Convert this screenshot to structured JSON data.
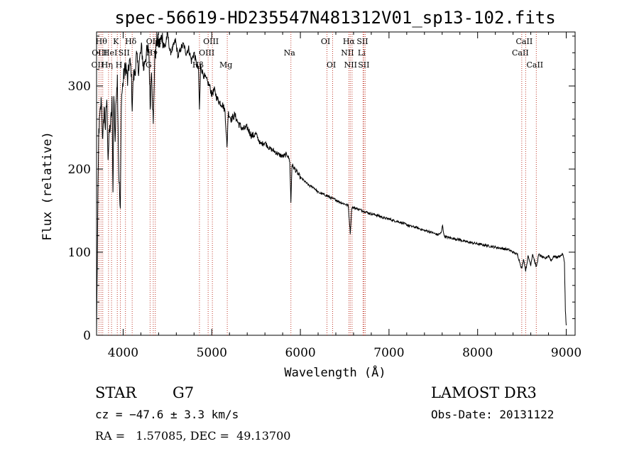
{
  "chart_data": {
    "type": "line",
    "title": "spec-56619-HD235547N481312V01_sp13-102.fits",
    "xlabel": "Wavelength (Å)",
    "ylabel": "Flux (relative)",
    "xlim": [
      3700,
      9100
    ],
    "ylim": [
      0,
      365
    ],
    "xticks": [
      4000,
      5000,
      6000,
      7000,
      8000,
      9000
    ],
    "yticks": [
      0,
      100,
      200,
      300
    ],
    "series": [
      {
        "name": "spectrum",
        "points": [
          [
            3700,
            3
          ],
          [
            3712,
            130
          ],
          [
            3725,
            245
          ],
          [
            3740,
            265
          ],
          [
            3755,
            285
          ],
          [
            3770,
            230
          ],
          [
            3785,
            275
          ],
          [
            3800,
            250
          ],
          [
            3815,
            285
          ],
          [
            3830,
            215
          ],
          [
            3845,
            245
          ],
          [
            3860,
            255
          ],
          [
            3875,
            280
          ],
          [
            3885,
            170
          ],
          [
            3895,
            290
          ],
          [
            3910,
            235
          ],
          [
            3925,
            300
          ],
          [
            3935,
            310
          ],
          [
            3950,
            200
          ],
          [
            3968,
            145
          ],
          [
            3980,
            285
          ],
          [
            3995,
            300
          ],
          [
            4010,
            315
          ],
          [
            4030,
            325
          ],
          [
            4050,
            305
          ],
          [
            4070,
            330
          ],
          [
            4090,
            320
          ],
          [
            4102,
            275
          ],
          [
            4115,
            310
          ],
          [
            4130,
            315
          ],
          [
            4150,
            335
          ],
          [
            4170,
            320
          ],
          [
            4190,
            335
          ],
          [
            4210,
            345
          ],
          [
            4230,
            320
          ],
          [
            4250,
            335
          ],
          [
            4270,
            340
          ],
          [
            4290,
            345
          ],
          [
            4305,
            275
          ],
          [
            4320,
            325
          ],
          [
            4340,
            250
          ],
          [
            4355,
            330
          ],
          [
            4380,
            355
          ],
          [
            4410,
            350
          ],
          [
            4440,
            360
          ],
          [
            4470,
            345
          ],
          [
            4500,
            365
          ],
          [
            4530,
            340
          ],
          [
            4560,
            345
          ],
          [
            4590,
            355
          ],
          [
            4620,
            335
          ],
          [
            4650,
            345
          ],
          [
            4680,
            350
          ],
          [
            4710,
            340
          ],
          [
            4740,
            345
          ],
          [
            4770,
            330
          ],
          [
            4800,
            340
          ],
          [
            4830,
            325
          ],
          [
            4850,
            320
          ],
          [
            4861,
            270
          ],
          [
            4875,
            325
          ],
          [
            4900,
            315
          ],
          [
            4925,
            310
          ],
          [
            4950,
            305
          ],
          [
            4975,
            300
          ],
          [
            5000,
            290
          ],
          [
            5030,
            295
          ],
          [
            5060,
            285
          ],
          [
            5090,
            280
          ],
          [
            5120,
            278
          ],
          [
            5150,
            270
          ],
          [
            5172,
            225
          ],
          [
            5185,
            268
          ],
          [
            5220,
            260
          ],
          [
            5260,
            265
          ],
          [
            5300,
            255
          ],
          [
            5350,
            248
          ],
          [
            5400,
            250
          ],
          [
            5450,
            240
          ],
          [
            5500,
            242
          ],
          [
            5550,
            230
          ],
          [
            5600,
            232
          ],
          [
            5650,
            225
          ],
          [
            5700,
            222
          ],
          [
            5750,
            218
          ],
          [
            5800,
            215
          ],
          [
            5850,
            218
          ],
          [
            5880,
            210
          ],
          [
            5893,
            160
          ],
          [
            5905,
            205
          ],
          [
            5950,
            198
          ],
          [
            6000,
            190
          ],
          [
            6050,
            185
          ],
          [
            6100,
            180
          ],
          [
            6150,
            178
          ],
          [
            6200,
            172
          ],
          [
            6250,
            170
          ],
          [
            6300,
            168
          ],
          [
            6350,
            165
          ],
          [
            6400,
            163
          ],
          [
            6450,
            160
          ],
          [
            6500,
            158
          ],
          [
            6540,
            156
          ],
          [
            6563,
            123
          ],
          [
            6580,
            154
          ],
          [
            6620,
            153
          ],
          [
            6650,
            152
          ],
          [
            6700,
            150
          ],
          [
            6750,
            148
          ],
          [
            6800,
            146
          ],
          [
            6850,
            145
          ],
          [
            6900,
            143
          ],
          [
            6950,
            141
          ],
          [
            7000,
            140
          ],
          [
            7050,
            138
          ],
          [
            7100,
            137
          ],
          [
            7150,
            135
          ],
          [
            7200,
            133
          ],
          [
            7250,
            131
          ],
          [
            7300,
            130
          ],
          [
            7350,
            128
          ],
          [
            7400,
            126
          ],
          [
            7450,
            125
          ],
          [
            7500,
            123
          ],
          [
            7550,
            121
          ],
          [
            7590,
            123
          ],
          [
            7605,
            133
          ],
          [
            7620,
            120
          ],
          [
            7650,
            118
          ],
          [
            7700,
            117
          ],
          [
            7750,
            116
          ],
          [
            7800,
            115
          ],
          [
            7850,
            113
          ],
          [
            7900,
            112
          ],
          [
            7950,
            111
          ],
          [
            8000,
            110
          ],
          [
            8050,
            109
          ],
          [
            8100,
            108
          ],
          [
            8150,
            107
          ],
          [
            8200,
            106
          ],
          [
            8250,
            105
          ],
          [
            8300,
            104
          ],
          [
            8350,
            103
          ],
          [
            8400,
            100
          ],
          [
            8450,
            97
          ],
          [
            8498,
            80
          ],
          [
            8520,
            92
          ],
          [
            8542,
            78
          ],
          [
            8570,
            95
          ],
          [
            8600,
            85
          ],
          [
            8620,
            98
          ],
          [
            8662,
            82
          ],
          [
            8690,
            97
          ],
          [
            8720,
            95
          ],
          [
            8760,
            92
          ],
          [
            8800,
            96
          ],
          [
            8830,
            90
          ],
          [
            8860,
            95
          ],
          [
            8900,
            94
          ],
          [
            8940,
            96
          ],
          [
            8960,
            98
          ],
          [
            8980,
            88
          ],
          [
            8990,
            30
          ],
          [
            9000,
            12
          ]
        ]
      }
    ],
    "line_marks": [
      {
        "wl": 3727,
        "label": "OII",
        "row": 3
      },
      {
        "wl": 3750,
        "label": "OIII",
        "row": 2
      },
      {
        "wl": 3770,
        "label": "Hθ",
        "row": 1
      },
      {
        "wl": 3835,
        "label": "Hη",
        "row": 3
      },
      {
        "wl": 3869,
        "label": "HeI",
        "row": 2
      },
      {
        "wl": 3934,
        "label": "K",
        "row": 1
      },
      {
        "wl": 3969,
        "label": "H",
        "row": 3
      },
      {
        "wl": 4026,
        "label": "SII",
        "row": 2
      },
      {
        "wl": 4102,
        "label": "Hδ",
        "row": 1
      },
      {
        "wl": 4304,
        "label": "G",
        "row": 3
      },
      {
        "wl": 4340,
        "label": "Hγ",
        "row": 2
      },
      {
        "wl": 4363,
        "label": "OIII",
        "row": 1
      },
      {
        "wl": 4861,
        "label": "Hβ",
        "row": 3
      },
      {
        "wl": 4959,
        "label": "OIII",
        "row": 2
      },
      {
        "wl": 5007,
        "label": "OIII",
        "row": 1
      },
      {
        "wl": 5175,
        "label": "Mg",
        "row": 3
      },
      {
        "wl": 5893,
        "label": "Na",
        "row": 2
      },
      {
        "wl": 6300,
        "label": "OI",
        "row": 1
      },
      {
        "wl": 6364,
        "label": "OI",
        "row": 3
      },
      {
        "wl": 6548,
        "label": "NII",
        "row": 2
      },
      {
        "wl": 6563,
        "label": "Hα",
        "row": 1
      },
      {
        "wl": 6583,
        "label": "NII",
        "row": 3
      },
      {
        "wl": 6707,
        "label": "Li",
        "row": 2
      },
      {
        "wl": 6716,
        "label": "SII",
        "row": 1
      },
      {
        "wl": 6731,
        "label": "SII",
        "row": 3
      },
      {
        "wl": 8498,
        "label": "CaII",
        "row": 2
      },
      {
        "wl": 8542,
        "label": "CaII",
        "row": 1
      },
      {
        "wl": 8662,
        "label": "CaII",
        "row": 3
      }
    ]
  },
  "info": {
    "object_type": "STAR",
    "subclass": "G7",
    "survey": "LAMOST DR3",
    "cz": "cz = −47.6 ± 3.3 km/s",
    "obs_date": "Obs-Date: 20131122",
    "coords": "RA =   1.57085, DEC =  49.13700"
  }
}
